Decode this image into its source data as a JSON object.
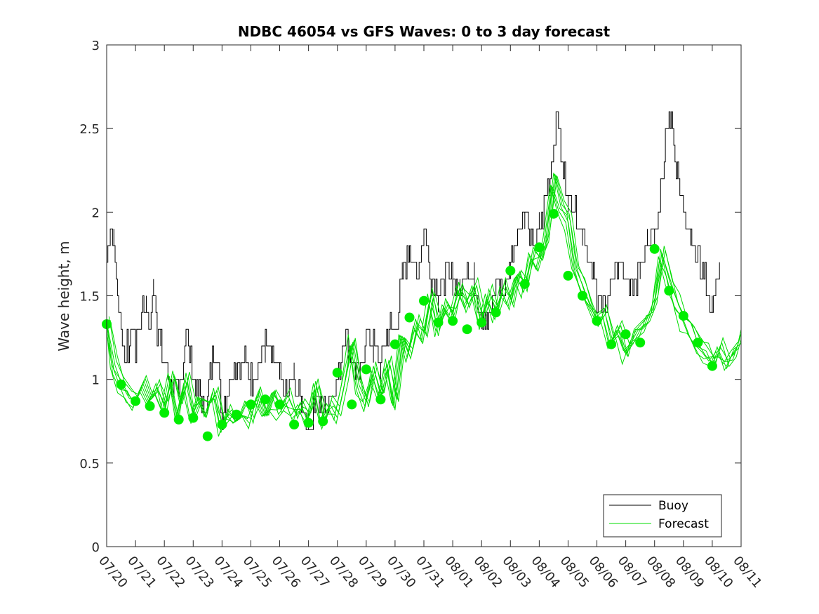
{
  "chart_data": {
    "type": "line",
    "title": "NDBC 46054 vs GFS Waves: 0 to 3 day forecast",
    "xlabel": "",
    "ylabel": "Wave height, m",
    "ylim": [
      0,
      3
    ],
    "yticks": [
      0,
      0.5,
      1,
      1.5,
      2,
      2.5,
      3
    ],
    "ytick_labels": [
      "0",
      "0.5",
      "1",
      "1.5",
      "2",
      "2.5",
      "3"
    ],
    "xlim": [
      "07/20",
      "08/11"
    ],
    "xtick_labels": [
      "07/20",
      "07/21",
      "07/22",
      "07/23",
      "07/24",
      "07/25",
      "07/26",
      "07/27",
      "07/28",
      "07/29",
      "07/30",
      "07/31",
      "08/01",
      "08/02",
      "08/03",
      "08/04",
      "08/05",
      "08/06",
      "08/07",
      "08/08",
      "08/09",
      "08/10",
      "08/11"
    ],
    "grid": false,
    "legend": {
      "position": "bottom-right",
      "entries": [
        {
          "label": "Buoy",
          "color": "#000000"
        },
        {
          "label": "Forecast",
          "color": "#00dd00"
        }
      ]
    },
    "series": [
      {
        "name": "Buoy",
        "color": "#000000",
        "x": [
          "07/20 00:00",
          "07/20 03:00",
          "07/20 06:00",
          "07/20 09:00",
          "07/20 12:00",
          "07/20 15:00",
          "07/20 18:00",
          "07/20 21:00",
          "07/21 00:00",
          "07/21 03:00",
          "07/21 06:00",
          "07/21 09:00",
          "07/21 12:00",
          "07/21 15:00",
          "07/21 18:00",
          "07/21 21:00",
          "07/22 00:00",
          "07/22 06:00",
          "07/22 12:00",
          "07/22 18:00",
          "07/23 00:00",
          "07/23 06:00",
          "07/23 09:00",
          "07/23 12:00",
          "07/23 18:00",
          "07/24 00:00",
          "07/24 06:00",
          "07/24 12:00",
          "07/24 18:00",
          "07/25 00:00",
          "07/25 06:00",
          "07/25 12:00",
          "07/25 18:00",
          "07/26 00:00",
          "07/26 06:00",
          "07/26 12:00",
          "07/26 18:00",
          "07/27 00:00",
          "07/27 06:00",
          "07/27 12:00",
          "07/27 18:00",
          "07/28 00:00",
          "07/28 06:00",
          "07/28 12:00",
          "07/28 18:00",
          "07/29 00:00",
          "07/29 06:00",
          "07/29 12:00",
          "07/29 18:00",
          "07/30 00:00",
          "07/30 06:00",
          "07/30 12:00",
          "07/30 18:00",
          "07/31 00:00",
          "07/31 06:00",
          "07/31 12:00",
          "07/31 18:00",
          "08/01 00:00",
          "08/01 06:00",
          "08/01 12:00",
          "08/01 18:00",
          "08/02 00:00",
          "08/02 06:00",
          "08/02 12:00",
          "08/02 18:00",
          "08/03 00:00",
          "08/03 06:00",
          "08/03 12:00",
          "08/03 18:00",
          "08/04 00:00",
          "08/04 06:00",
          "08/04 12:00",
          "08/04 15:00",
          "08/04 18:00",
          "08/05 00:00",
          "08/05 06:00",
          "08/05 12:00",
          "08/05 18:00",
          "08/06 00:00",
          "08/06 06:00",
          "08/06 12:00",
          "08/06 18:00",
          "08/07 00:00",
          "08/07 06:00",
          "08/07 12:00",
          "08/07 18:00",
          "08/08 00:00",
          "08/08 06:00",
          "08/08 12:00",
          "08/08 18:00",
          "08/09 00:00",
          "08/09 06:00",
          "08/09 12:00",
          "08/09 18:00",
          "08/10 00:00",
          "08/10 06:00"
        ],
        "y": [
          1.7,
          1.9,
          1.8,
          1.5,
          1.3,
          1.2,
          1.2,
          1.3,
          1.2,
          1.3,
          1.5,
          1.4,
          1.3,
          1.6,
          1.3,
          1.2,
          1.1,
          1.0,
          0.9,
          1.3,
          1.0,
          0.9,
          0.85,
          0.9,
          1.2,
          0.8,
          1.0,
          1.1,
          1.1,
          1.0,
          1.1,
          1.2,
          1.1,
          1.0,
          0.9,
          1.0,
          0.9,
          0.7,
          0.9,
          0.8,
          0.9,
          1.0,
          1.3,
          1.1,
          1.0,
          1.3,
          1.2,
          1.1,
          1.3,
          1.3,
          1.6,
          1.8,
          1.6,
          1.9,
          1.6,
          1.5,
          1.6,
          1.6,
          1.5,
          1.7,
          1.6,
          1.4,
          1.3,
          1.6,
          1.5,
          1.7,
          1.9,
          2.0,
          1.8,
          1.9,
          2.1,
          2.4,
          2.6,
          2.3,
          2.1,
          2.0,
          1.9,
          1.7,
          1.5,
          1.4,
          1.6,
          1.7,
          1.6,
          1.5,
          1.7,
          1.9,
          1.9,
          2.2,
          2.6,
          2.3,
          2.0,
          1.8,
          1.7,
          1.6,
          1.4,
          1.7
        ]
      },
      {
        "name": "Forecast",
        "color": "#00dd00",
        "members": 7,
        "x": [
          "07/20 00:00",
          "07/20 06:00",
          "07/20 12:00",
          "07/20 18:00",
          "07/21 00:00",
          "07/21 06:00",
          "07/21 12:00",
          "07/21 18:00",
          "07/22 00:00",
          "07/22 06:00",
          "07/22 12:00",
          "07/22 18:00",
          "07/23 00:00",
          "07/23 06:00",
          "07/23 12:00",
          "07/23 18:00",
          "07/24 00:00",
          "07/24 06:00",
          "07/24 12:00",
          "07/24 18:00",
          "07/25 00:00",
          "07/25 06:00",
          "07/25 12:00",
          "07/25 18:00",
          "07/26 00:00",
          "07/26 06:00",
          "07/26 12:00",
          "07/26 18:00",
          "07/27 00:00",
          "07/27 06:00",
          "07/27 12:00",
          "07/27 18:00",
          "07/28 00:00",
          "07/28 06:00",
          "07/28 12:00",
          "07/28 18:00",
          "07/29 00:00",
          "07/29 06:00",
          "07/29 12:00",
          "07/29 18:00",
          "07/30 00:00",
          "07/30 06:00",
          "07/30 12:00",
          "07/30 18:00",
          "07/31 00:00",
          "07/31 06:00",
          "07/31 12:00",
          "07/31 18:00",
          "08/01 00:00",
          "08/01 06:00",
          "08/01 12:00",
          "08/01 18:00",
          "08/02 00:00",
          "08/02 06:00",
          "08/02 12:00",
          "08/02 18:00",
          "08/03 00:00",
          "08/03 06:00",
          "08/03 12:00",
          "08/03 18:00",
          "08/04 00:00",
          "08/04 06:00",
          "08/04 12:00",
          "08/04 18:00",
          "08/05 00:00",
          "08/05 06:00",
          "08/05 12:00",
          "08/05 18:00",
          "08/06 00:00",
          "08/06 06:00",
          "08/06 12:00",
          "08/06 18:00",
          "08/07 00:00",
          "08/07 06:00",
          "08/07 12:00",
          "08/07 18:00",
          "08/08 00:00",
          "08/08 06:00",
          "08/08 12:00",
          "08/08 18:00",
          "08/09 00:00",
          "08/09 06:00",
          "08/09 12:00",
          "08/09 18:00",
          "08/10 00:00",
          "08/10 06:00",
          "08/10 12:00",
          "08/10 18:00",
          "08/11 00:00"
        ],
        "y": [
          1.33,
          1.08,
          0.97,
          0.92,
          0.87,
          1.0,
          0.85,
          0.95,
          0.82,
          1.02,
          0.8,
          1.0,
          0.78,
          0.9,
          0.82,
          0.92,
          0.7,
          0.8,
          0.74,
          0.82,
          0.76,
          0.9,
          0.8,
          0.88,
          0.82,
          0.88,
          0.78,
          0.83,
          0.76,
          0.95,
          0.75,
          0.85,
          0.78,
          0.98,
          1.25,
          0.95,
          0.85,
          1.05,
          0.92,
          1.1,
          0.85,
          1.25,
          1.15,
          1.35,
          1.25,
          1.5,
          1.3,
          1.45,
          1.38,
          1.55,
          1.45,
          1.55,
          1.35,
          1.5,
          1.4,
          1.55,
          1.45,
          1.65,
          1.55,
          1.75,
          1.7,
          1.85,
          2.2,
          2.0,
          1.95,
          1.65,
          1.55,
          1.45,
          1.35,
          1.4,
          1.25,
          1.3,
          1.15,
          1.25,
          1.3,
          1.35,
          1.45,
          1.75,
          1.6,
          1.45,
          1.35,
          1.3,
          1.2,
          1.15,
          1.1,
          1.18,
          1.1,
          1.15,
          1.25
        ]
      }
    ],
    "markers": {
      "color": "#00ee00",
      "x": [
        "07/20 00:00",
        "07/20 12:00",
        "07/21 00:00",
        "07/21 12:00",
        "07/22 00:00",
        "07/22 12:00",
        "07/23 00:00",
        "07/23 12:00",
        "07/24 00:00",
        "07/24 12:00",
        "07/25 00:00",
        "07/25 12:00",
        "07/26 00:00",
        "07/26 12:00",
        "07/27 00:00",
        "07/27 12:00",
        "07/28 00:00",
        "07/28 12:00",
        "07/29 00:00",
        "07/29 12:00",
        "07/30 00:00",
        "07/30 12:00",
        "07/31 00:00",
        "07/31 12:00",
        "08/01 00:00",
        "08/01 12:00",
        "08/02 00:00",
        "08/02 12:00",
        "08/03 00:00",
        "08/03 12:00",
        "08/04 00:00",
        "08/04 12:00",
        "08/05 00:00",
        "08/05 12:00",
        "08/06 00:00",
        "08/06 12:00",
        "08/07 00:00",
        "08/07 12:00",
        "08/08 00:00",
        "08/08 12:00",
        "08/09 00:00",
        "08/09 12:00",
        "08/10 00:00"
      ],
      "y": [
        1.33,
        0.97,
        0.87,
        0.84,
        0.8,
        0.76,
        0.77,
        0.66,
        0.73,
        0.79,
        0.85,
        0.88,
        0.85,
        0.73,
        0.74,
        0.75,
        1.04,
        0.85,
        1.06,
        0.88,
        1.21,
        1.37,
        1.47,
        1.34,
        1.35,
        1.3,
        1.34,
        1.4,
        1.65,
        1.57,
        1.79,
        1.99,
        1.62,
        1.5,
        1.35,
        1.21,
        1.27,
        1.22,
        1.78,
        1.53,
        1.38,
        1.22,
        1.08
      ]
    }
  }
}
